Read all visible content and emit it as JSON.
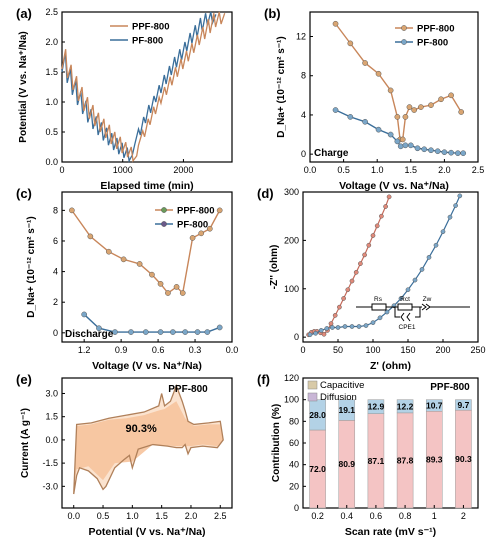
{
  "colors": {
    "ppf": "#c8865a",
    "pf": "#3a6e9a",
    "pf_marker": "#7aa6c8",
    "ppf_marker": "#d9a572",
    "cv_fill": "#f6c39c",
    "cap_fill": "#f4c4c4",
    "diff_fill": "#b3d2e6",
    "axis": "#000000"
  },
  "chart_data": [
    {
      "panel": "(a)",
      "type": "line",
      "xlabel": "Elapsed time (min)",
      "ylabel": "Potential (V vs. Na⁺/Na)",
      "xlim": [
        0,
        2800
      ],
      "ylim": [
        0,
        2.5
      ],
      "xticks": [
        "0",
        "1000",
        "2000"
      ],
      "yticks": [
        "0.0",
        "0.5",
        "1.0",
        "1.5",
        "2.0",
        "2.5"
      ],
      "legend": [
        "PPF-800",
        "PF-800"
      ],
      "series": [
        {
          "name": "PPF-800",
          "x": [
            0,
            60,
            90,
            150,
            180,
            240,
            270,
            330,
            360,
            420,
            450,
            510,
            540,
            600,
            630,
            690,
            720,
            780,
            810,
            870,
            900,
            960,
            990,
            1050,
            1080,
            1140,
            1170,
            1230,
            1260,
            1330,
            1360,
            1420,
            1450,
            1510,
            1540,
            1600,
            1630,
            1690,
            1720,
            1780,
            1810,
            1870,
            1900,
            1960,
            1990,
            2050,
            2080,
            2140,
            2170,
            2230,
            2260,
            2320,
            2350,
            2410,
            2440,
            2500,
            2530,
            2590,
            2620,
            2680
          ],
          "y": [
            1.55,
            1.88,
            1.4,
            1.62,
            1.2,
            1.43,
            1.02,
            1.25,
            0.85,
            1.08,
            0.72,
            0.95,
            0.6,
            0.82,
            0.5,
            0.72,
            0.4,
            0.62,
            0.3,
            0.5,
            0.22,
            0.42,
            0.15,
            0.33,
            0.08,
            0.25,
            0.02,
            0.1,
            0.28,
            0.52,
            0.42,
            0.72,
            0.62,
            0.92,
            0.8,
            1.08,
            0.98,
            1.25,
            1.12,
            1.42,
            1.28,
            1.58,
            1.42,
            1.72,
            1.55,
            1.85,
            1.68,
            1.98,
            1.82,
            2.12,
            1.95,
            2.25,
            2.05,
            2.38,
            2.15,
            2.48,
            2.25,
            2.5,
            2.3,
            2.48
          ]
        },
        {
          "name": "PF-800",
          "x": [
            0,
            55,
            85,
            140,
            170,
            225,
            255,
            310,
            340,
            395,
            425,
            480,
            510,
            565,
            595,
            650,
            680,
            735,
            765,
            820,
            850,
            905,
            935,
            990,
            1020,
            1075,
            1105,
            1160,
            1200,
            1260,
            1290,
            1345,
            1375,
            1430,
            1460,
            1515,
            1545,
            1600,
            1630,
            1685,
            1715,
            1770,
            1800,
            1855,
            1885,
            1940,
            1970,
            2025,
            2055,
            2110,
            2140,
            2195,
            2225,
            2280,
            2310,
            2365,
            2395,
            2450,
            2480,
            2535
          ],
          "y": [
            1.5,
            1.82,
            1.32,
            1.55,
            1.12,
            1.36,
            0.95,
            1.18,
            0.8,
            1.02,
            0.66,
            0.88,
            0.55,
            0.76,
            0.45,
            0.66,
            0.36,
            0.57,
            0.28,
            0.48,
            0.2,
            0.4,
            0.13,
            0.32,
            0.07,
            0.24,
            0.02,
            0.12,
            0.3,
            0.55,
            0.45,
            0.75,
            0.65,
            0.95,
            0.82,
            1.1,
            1.0,
            1.28,
            1.15,
            1.45,
            1.3,
            1.6,
            1.45,
            1.75,
            1.58,
            1.88,
            1.7,
            2.0,
            1.85,
            2.15,
            1.98,
            2.28,
            2.08,
            2.4,
            2.18,
            2.48,
            2.28,
            2.5,
            2.32,
            2.46
          ]
        }
      ]
    },
    {
      "panel": "(b)",
      "type": "line",
      "xlabel": "Voltage (V vs. Na⁺/Na)",
      "ylabel": "D_Na+ (10⁻¹² cm² s⁻¹)",
      "xlim": [
        0,
        2.5
      ],
      "ylim": [
        -0.8,
        14.5
      ],
      "xticks": [
        "0.0",
        "0.5",
        "1.0",
        "1.5",
        "2.0",
        "2.5"
      ],
      "yticks": [
        "0",
        "4",
        "8",
        "12"
      ],
      "legend": [
        "PPF-800",
        "PF-800"
      ],
      "annotation": "Charge",
      "series": [
        {
          "name": "PPF-800",
          "x": [
            0.38,
            0.6,
            0.82,
            1.02,
            1.2,
            1.3,
            1.34,
            1.38,
            1.42,
            1.48,
            1.55,
            1.65,
            1.8,
            1.95,
            2.1,
            2.25
          ],
          "y": [
            13.3,
            11.3,
            9.3,
            8.2,
            6.5,
            3.8,
            1.5,
            1.5,
            3.8,
            4.8,
            4.5,
            4.8,
            5.0,
            5.6,
            6.0,
            4.3
          ]
        },
        {
          "name": "PF-800",
          "x": [
            0.38,
            0.6,
            0.82,
            1.02,
            1.2,
            1.3,
            1.35,
            1.42,
            1.5,
            1.6,
            1.7,
            1.8,
            1.9,
            2.0,
            2.1,
            2.2,
            2.28
          ],
          "y": [
            4.5,
            3.8,
            3.3,
            2.5,
            2.0,
            1.3,
            0.8,
            0.9,
            0.9,
            0.6,
            0.5,
            0.4,
            0.3,
            0.2,
            0.15,
            0.1,
            0.1
          ]
        }
      ]
    },
    {
      "panel": "(c)",
      "type": "line",
      "xlabel": "Voltage (V vs. Na⁺/Na)",
      "ylabel": "D_Na+ (10⁻¹² cm² s⁻¹)",
      "xlim": [
        1.38,
        0.0
      ],
      "ylim": [
        -0.6,
        9.2
      ],
      "xticks": [
        "1.2",
        "0.9",
        "0.6",
        "0.3",
        "0.0"
      ],
      "yticks": [
        "0",
        "2",
        "4",
        "6",
        "8"
      ],
      "legend": [
        "PPF-800",
        "PF-800"
      ],
      "annotation": "Discharge",
      "series": [
        {
          "name": "PPF-800",
          "x": [
            1.3,
            1.15,
            1.0,
            0.88,
            0.75,
            0.65,
            0.58,
            0.52,
            0.45,
            0.4,
            0.32,
            0.25,
            0.18,
            0.1
          ],
          "y": [
            8.0,
            6.3,
            5.3,
            4.8,
            4.5,
            3.8,
            3.2,
            2.6,
            3.0,
            2.6,
            6.2,
            6.5,
            6.8,
            8.0
          ]
        },
        {
          "name": "PF-800",
          "x": [
            1.2,
            1.08,
            0.95,
            0.82,
            0.7,
            0.58,
            0.48,
            0.38,
            0.28,
            0.2,
            0.1
          ],
          "y": [
            1.2,
            0.3,
            0.05,
            0.05,
            0.05,
            0.05,
            0.05,
            0.05,
            0.05,
            0.05,
            0.35
          ]
        }
      ]
    },
    {
      "panel": "(d)",
      "type": "scatter",
      "xlabel": "Z' (ohm)",
      "ylabel": "-Z'' (ohm)",
      "xlim": [
        0,
        250
      ],
      "ylim": [
        -10,
        300
      ],
      "xticks": [
        "0",
        "50",
        "100",
        "150",
        "200",
        "250"
      ],
      "yticks": [
        "0",
        "100",
        "200",
        "300"
      ],
      "circuit_labels": [
        "Rs",
        "Rct",
        "Zw",
        "CPE1"
      ],
      "series": [
        {
          "name": "PPF-800",
          "x": [
            8,
            12,
            16,
            20,
            25,
            30,
            35,
            40,
            46,
            52,
            58,
            64,
            70,
            76,
            82,
            88,
            94,
            100,
            106,
            112,
            118,
            123
          ],
          "y": [
            5,
            10,
            12,
            12,
            9,
            6,
            14,
            28,
            45,
            62,
            80,
            98,
            116,
            134,
            152,
            170,
            190,
            210,
            230,
            250,
            270,
            290
          ]
        },
        {
          "name": "PF-800",
          "x": [
            10,
            18,
            26,
            34,
            42,
            50,
            60,
            70,
            80,
            90,
            100,
            110,
            120,
            130,
            140,
            150,
            160,
            170,
            180,
            190,
            200,
            210,
            218,
            224
          ],
          "y": [
            5,
            8,
            14,
            18,
            20,
            20,
            22,
            22,
            22,
            24,
            30,
            40,
            52,
            65,
            80,
            98,
            118,
            140,
            165,
            190,
            218,
            248,
            272,
            292
          ]
        }
      ]
    },
    {
      "panel": "(e)",
      "type": "area",
      "xlabel": "Potential (V vs. Na⁺/Na)",
      "ylabel": "Current (A g⁻¹)",
      "xlim": [
        -0.2,
        2.7
      ],
      "ylim": [
        -4.4,
        4.0
      ],
      "xticks": [
        "0.0",
        "0.5",
        "1.0",
        "1.5",
        "2.0",
        "2.5"
      ],
      "yticks": [
        "-3.0",
        "-1.5",
        "0.0",
        "1.5",
        "3.0"
      ],
      "series_label": "PPF-800",
      "annotation": "90.3%",
      "series": [
        {
          "name": "total",
          "x": [
            0.0,
            0.05,
            0.3,
            0.6,
            0.9,
            1.2,
            1.45,
            1.5,
            1.55,
            1.65,
            1.75,
            1.85,
            1.9,
            1.95,
            2.05,
            2.3,
            2.5,
            2.55,
            2.45,
            2.2,
            2.0,
            1.95,
            1.9,
            1.85,
            1.75,
            1.6,
            1.35,
            1.1,
            1.0,
            0.95,
            0.85,
            0.7,
            0.55,
            0.5,
            0.4,
            0.25,
            0.1,
            0.05,
            0.0
          ],
          "y": [
            -3.5,
            1.0,
            1.1,
            1.4,
            1.6,
            1.8,
            2.2,
            3.0,
            2.2,
            2.5,
            3.5,
            2.5,
            1.9,
            1.2,
            1.0,
            1.1,
            1.2,
            0.0,
            -0.5,
            -0.4,
            -0.5,
            -0.9,
            -0.3,
            -0.5,
            -0.5,
            -0.4,
            -0.3,
            -0.6,
            -1.8,
            -1.0,
            -1.3,
            -1.8,
            -3.0,
            -3.2,
            -2.5,
            -2.0,
            -1.8,
            -2.3,
            -3.5
          ]
        },
        {
          "name": "capacitive",
          "x": [
            0.0,
            0.05,
            0.3,
            0.6,
            0.9,
            1.2,
            1.45,
            1.55,
            1.75,
            1.9,
            2.05,
            2.3,
            2.5,
            2.55,
            2.45,
            2.2,
            2.0,
            1.75,
            1.35,
            1.0,
            0.7,
            0.5,
            0.25,
            0.05,
            0.0
          ],
          "y": [
            -3.0,
            0.9,
            1.0,
            1.3,
            1.4,
            1.6,
            1.9,
            2.0,
            2.5,
            1.4,
            0.9,
            1.0,
            1.0,
            0.0,
            -0.4,
            -0.3,
            -0.4,
            -0.4,
            -0.3,
            -1.4,
            -1.5,
            -2.6,
            -1.7,
            -1.9,
            -3.0
          ]
        }
      ]
    },
    {
      "panel": "(f)",
      "type": "bar",
      "stacked": true,
      "xlabel": "Scan rate (mV s⁻¹)",
      "ylabel": "Contribution (%)",
      "ylim": [
        0,
        120
      ],
      "yticks": [
        "0",
        "20",
        "40",
        "60",
        "80",
        "100",
        "120"
      ],
      "categories": [
        "0.2",
        "0.4",
        "0.6",
        "0.8",
        "1",
        "2"
      ],
      "series_label": "PPF-800",
      "series": [
        {
          "name": "Capacitive",
          "values": [
            72.0,
            80.9,
            87.1,
            87.8,
            89.3,
            90.3
          ]
        },
        {
          "name": "Diffusion",
          "values": [
            28.0,
            19.1,
            12.9,
            12.2,
            10.7,
            9.7
          ]
        }
      ]
    }
  ]
}
